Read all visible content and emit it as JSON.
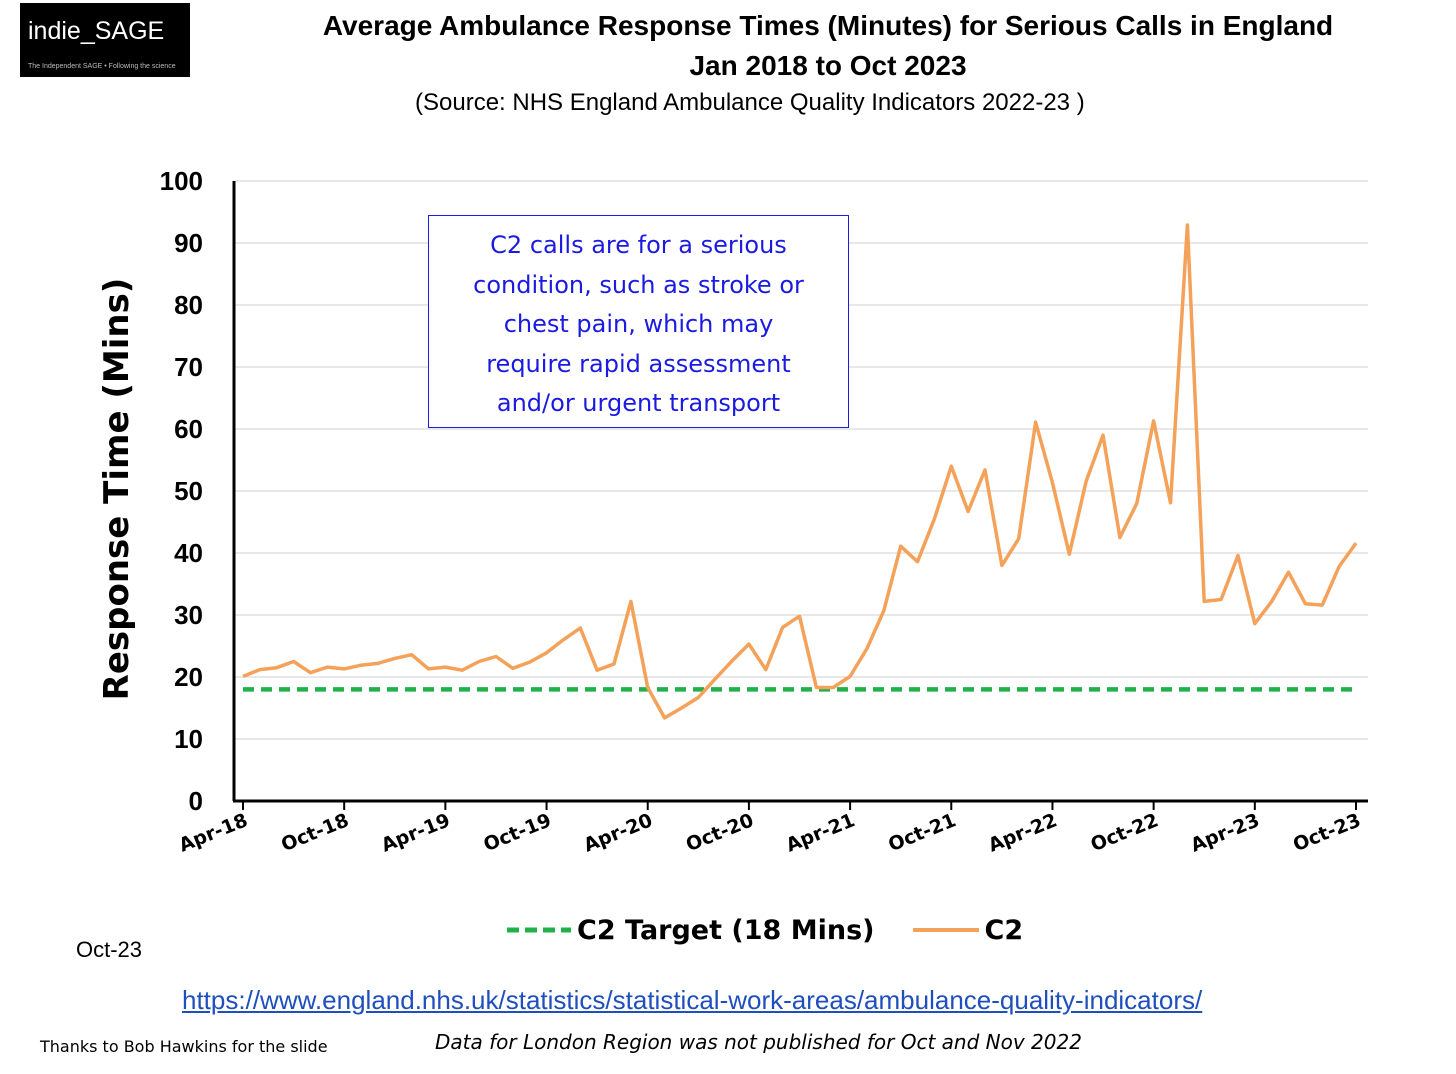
{
  "logo": {
    "name": "indie_SAGE",
    "tagline": "The Independent SAGE • Following the science"
  },
  "header": {
    "title_line1": "Average Ambulance Response Times (Minutes) for Serious Calls in England",
    "title_line2": "Jan 2018 to Oct 2023",
    "subtitle": "(Source: NHS England Ambulance Quality Indicators 2022-23 )"
  },
  "annotation": {
    "lines": [
      "C2 calls are for a serious",
      "condition, such as stroke or",
      "chest pain, which may",
      "require rapid assessment",
      "and/or urgent transport"
    ]
  },
  "month_note": "Oct-23",
  "source_url": "https://www.england.nhs.uk/statistics/statistical-work-areas/ambulance-quality-indicators/",
  "credit": "Thanks to Bob Hawkins for the slide",
  "footnote": "Data for London Region was not published for Oct and Nov 2022",
  "chart_data": {
    "type": "line",
    "ylabel": "Response Time (Mins)",
    "xlabel": "",
    "ylim": [
      0,
      100
    ],
    "yticks": [
      0,
      10,
      20,
      30,
      40,
      50,
      60,
      70,
      80,
      90,
      100
    ],
    "grid": true,
    "legend_position": "bottom",
    "x_tick_labels": [
      "Apr-18",
      "Oct-18",
      "Apr-19",
      "Oct-19",
      "Apr-20",
      "Oct-20",
      "Apr-21",
      "Oct-21",
      "Apr-22",
      "Oct-22",
      "Apr-23",
      "Oct-23"
    ],
    "x": [
      "Apr-18",
      "May-18",
      "Jun-18",
      "Jul-18",
      "Aug-18",
      "Sep-18",
      "Oct-18",
      "Nov-18",
      "Dec-18",
      "Jan-19",
      "Feb-19",
      "Mar-19",
      "Apr-19",
      "May-19",
      "Jun-19",
      "Jul-19",
      "Aug-19",
      "Sep-19",
      "Oct-19",
      "Nov-19",
      "Dec-19",
      "Jan-20",
      "Feb-20",
      "Mar-20",
      "Apr-20",
      "May-20",
      "Jun-20",
      "Jul-20",
      "Aug-20",
      "Sep-20",
      "Oct-20",
      "Nov-20",
      "Dec-20",
      "Jan-21",
      "Feb-21",
      "Mar-21",
      "Apr-21",
      "May-21",
      "Jun-21",
      "Jul-21",
      "Aug-21",
      "Sep-21",
      "Oct-21",
      "Nov-21",
      "Dec-21",
      "Jan-22",
      "Feb-22",
      "Mar-22",
      "Apr-22",
      "May-22",
      "Jun-22",
      "Jul-22",
      "Aug-22",
      "Sep-22",
      "Oct-22",
      "Nov-22",
      "Dec-22",
      "Jan-23",
      "Feb-23",
      "Mar-23",
      "Apr-23",
      "May-23",
      "Jun-23",
      "Jul-23",
      "Aug-23",
      "Sep-23",
      "Oct-23"
    ],
    "series": [
      {
        "name": "C2 Target (18 Mins)",
        "color": "#22b04b",
        "style": "dashed",
        "values": [
          18,
          18,
          18,
          18,
          18,
          18,
          18,
          18,
          18,
          18,
          18,
          18,
          18,
          18,
          18,
          18,
          18,
          18,
          18,
          18,
          18,
          18,
          18,
          18,
          18,
          18,
          18,
          18,
          18,
          18,
          18,
          18,
          18,
          18,
          18,
          18,
          18,
          18,
          18,
          18,
          18,
          18,
          18,
          18,
          18,
          18,
          18,
          18,
          18,
          18,
          18,
          18,
          18,
          18,
          18,
          18,
          18,
          18,
          18,
          18,
          18,
          18,
          18,
          18,
          18,
          18,
          18
        ]
      },
      {
        "name": "C2",
        "color": "#f4a15a",
        "style": "solid",
        "values": [
          20.1,
          21.2,
          21.5,
          22.5,
          20.7,
          21.6,
          21.3,
          21.9,
          22.2,
          23.0,
          23.6,
          21.3,
          21.6,
          21.1,
          22.5,
          23.3,
          21.4,
          22.4,
          23.9,
          26.0,
          27.9,
          21.1,
          22.1,
          32.2,
          18.3,
          13.4,
          15.0,
          16.7,
          19.7,
          22.6,
          25.3,
          21.2,
          28.0,
          29.8,
          18.3,
          18.3,
          20.1,
          24.6,
          30.7,
          41.1,
          38.6,
          45.5,
          54.0,
          46.7,
          53.4,
          38.0,
          42.3,
          61.1,
          51.3,
          39.8,
          51.6,
          59.0,
          42.5,
          48.0,
          61.3,
          48.1,
          92.9,
          32.2,
          32.5,
          39.6,
          28.6,
          32.2,
          36.9,
          31.8,
          31.6,
          37.8,
          41.6
        ]
      }
    ]
  }
}
